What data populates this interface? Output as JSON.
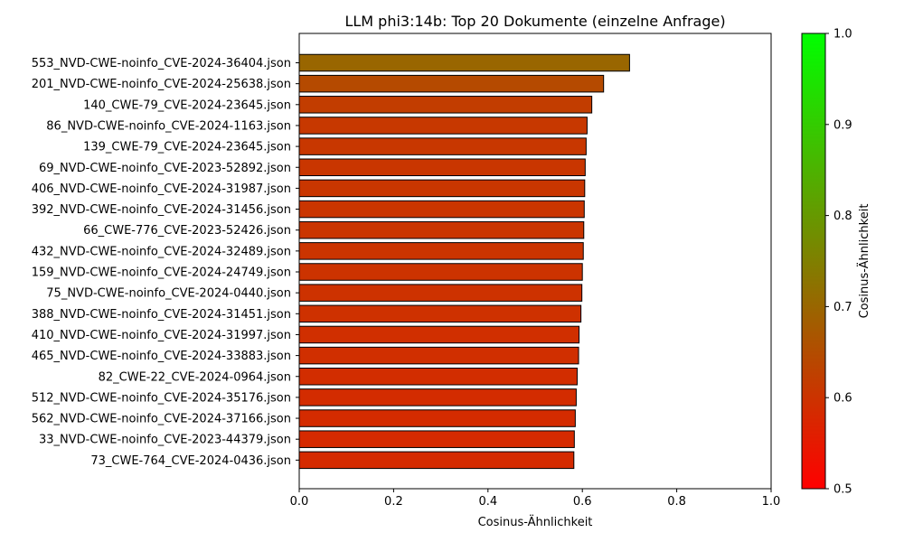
{
  "chart_data": {
    "type": "bar",
    "orientation": "horizontal",
    "title": "LLM phi3:14b: Top 20 Dokumente (einzelne Anfrage)",
    "xlabel": "Cosinus-Ähnlichkeit",
    "ylabel": "",
    "xlim": [
      0.0,
      1.0
    ],
    "xticks": [
      "0.0",
      "0.2",
      "0.4",
      "0.6",
      "0.8",
      "1.0"
    ],
    "grid": false,
    "categories": [
      "553_NVD-CWE-noinfo_CVE-2024-36404.json",
      "201_NVD-CWE-noinfo_CVE-2024-25638.json",
      "140_CWE-79_CVE-2024-23645.json",
      "86_NVD-CWE-noinfo_CVE-2024-1163.json",
      "139_CWE-79_CVE-2024-23645.json",
      "69_NVD-CWE-noinfo_CVE-2023-52892.json",
      "406_NVD-CWE-noinfo_CVE-2024-31987.json",
      "392_NVD-CWE-noinfo_CVE-2024-31456.json",
      "66_CWE-776_CVE-2023-52426.json",
      "432_NVD-CWE-noinfo_CVE-2024-32489.json",
      "159_NVD-CWE-noinfo_CVE-2024-24749.json",
      "75_NVD-CWE-noinfo_CVE-2024-0440.json",
      "388_NVD-CWE-noinfo_CVE-2024-31451.json",
      "410_NVD-CWE-noinfo_CVE-2024-31997.json",
      "465_NVD-CWE-noinfo_CVE-2024-33883.json",
      "82_CWE-22_CVE-2024-0964.json",
      "512_NVD-CWE-noinfo_CVE-2024-35176.json",
      "562_NVD-CWE-noinfo_CVE-2024-37166.json",
      "33_NVD-CWE-noinfo_CVE-2023-44379.json",
      "73_CWE-764_CVE-2024-0436.json"
    ],
    "values": [
      0.7,
      0.645,
      0.62,
      0.61,
      0.608,
      0.606,
      0.605,
      0.604,
      0.603,
      0.602,
      0.6,
      0.599,
      0.597,
      0.593,
      0.592,
      0.589,
      0.587,
      0.585,
      0.583,
      0.582
    ],
    "colorbar": {
      "label": "Cosinus-Ähnlichkeit",
      "range": [
        0.5,
        1.0
      ],
      "ticks": [
        "0.5",
        "0.6",
        "0.7",
        "0.8",
        "0.9",
        "1.0"
      ],
      "color_low": "#ff0000",
      "color_high": "#00ff00"
    },
    "bar_edge_color": "#000000"
  }
}
